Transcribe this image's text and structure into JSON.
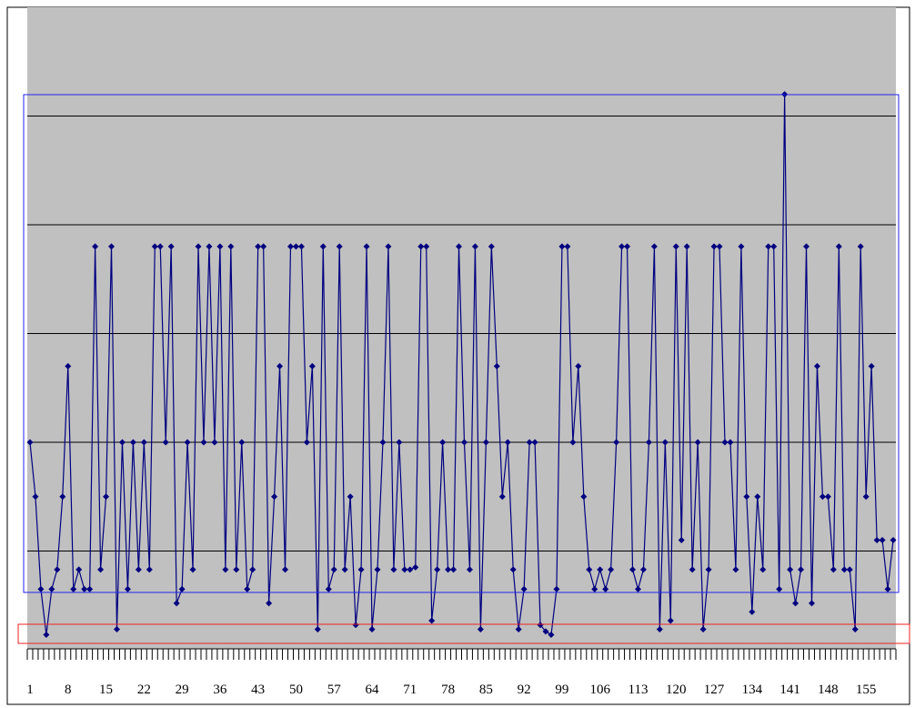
{
  "chart_data": {
    "type": "line",
    "categories": [
      "1",
      null,
      null,
      null,
      null,
      null,
      null,
      "8",
      null,
      null,
      null,
      null,
      null,
      null,
      "15",
      null,
      null,
      null,
      null,
      null,
      null,
      "22",
      null,
      null,
      null,
      null,
      null,
      null,
      "29",
      null,
      null,
      null,
      null,
      null,
      null,
      "36",
      null,
      null,
      null,
      null,
      null,
      null,
      "43",
      null,
      null,
      null,
      null,
      null,
      null,
      "50",
      null,
      null,
      null,
      null,
      null,
      null,
      "57",
      null,
      null,
      null,
      null,
      null,
      null,
      "64",
      null,
      null,
      null,
      null,
      null,
      null,
      "71",
      null,
      null,
      null,
      null,
      null,
      null,
      "78",
      null,
      null,
      null,
      null,
      null,
      null,
      "85",
      null,
      null,
      null,
      null,
      null,
      null,
      "92",
      null,
      null,
      null,
      null,
      null,
      null,
      "99",
      null,
      null,
      null,
      null,
      null,
      null,
      "106",
      null,
      null,
      null,
      null,
      null,
      null,
      "113",
      null,
      null,
      null,
      null,
      null,
      null,
      "120",
      null,
      null,
      null,
      null,
      null,
      null,
      "127",
      null,
      null,
      null,
      null,
      null,
      null,
      "134",
      null,
      null,
      null,
      null,
      null,
      null,
      "141",
      null,
      null,
      null,
      null,
      null,
      null,
      "148",
      null,
      null,
      null,
      null,
      null,
      null,
      "155",
      null,
      null,
      null,
      null,
      null
    ],
    "series": [
      {
        "color": "#000080",
        "values": [
          2,
          1.5,
          0.65,
          0.23,
          0.65,
          0.83,
          1.5,
          2.7,
          0.65,
          0.83,
          0.65,
          0.65,
          3.8,
          0.83,
          1.5,
          3.8,
          0.28,
          2,
          0.65,
          2,
          0.83,
          2,
          0.83,
          3.8,
          3.8,
          2,
          3.8,
          0.52,
          0.65,
          2,
          0.83,
          3.8,
          2,
          3.8,
          2,
          3.8,
          0.83,
          3.8,
          0.83,
          2,
          0.65,
          0.83,
          3.8,
          3.8,
          0.52,
          1.5,
          2.7,
          0.83,
          3.8,
          3.8,
          3.8,
          2,
          2.7,
          0.28,
          3.8,
          0.65,
          0.83,
          3.8,
          0.83,
          1.5,
          0.32,
          0.83,
          3.8,
          0.28,
          0.83,
          2,
          3.8,
          0.83,
          2,
          0.83,
          0.83,
          0.85,
          3.8,
          3.8,
          0.36,
          0.83,
          2,
          0.83,
          0.83,
          3.8,
          2,
          0.83,
          3.8,
          0.28,
          2,
          3.8,
          2.7,
          1.5,
          2,
          0.83,
          0.28,
          0.65,
          2,
          2,
          0.32,
          0.26,
          0.23,
          0.65,
          3.8,
          3.8,
          2,
          2.7,
          1.5,
          0.83,
          0.65,
          0.83,
          0.65,
          0.83,
          2,
          3.8,
          3.8,
          0.83,
          0.65,
          0.83,
          2,
          3.8,
          0.28,
          2,
          0.36,
          3.8,
          1.1,
          3.8,
          0.83,
          2,
          0.28,
          0.83,
          3.8,
          3.8,
          2,
          2,
          0.83,
          3.8,
          1.5,
          0.44,
          1.5,
          0.83,
          3.8,
          3.8,
          0.65,
          5.2,
          0.83,
          0.52,
          0.83,
          3.8,
          0.52,
          2.7,
          1.5,
          1.5,
          0.83,
          3.8,
          0.83,
          0.83,
          0.28,
          3.8,
          1.5,
          2.7,
          1.1,
          1.1,
          0.65,
          1.1
        ]
      }
    ],
    "ylim": [
      0,
      6
    ],
    "yticks": [
      1,
      2,
      3,
      4,
      5
    ],
    "grid": true
  }
}
